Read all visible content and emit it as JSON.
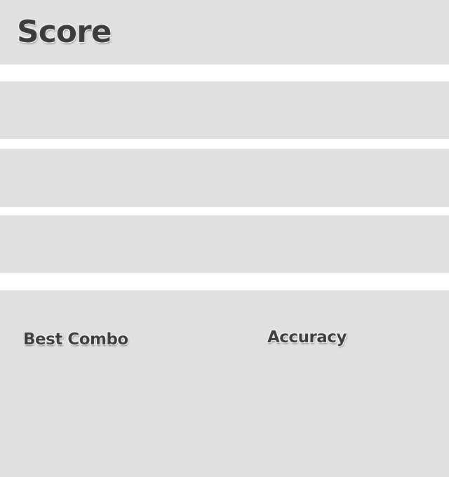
{
  "header": {
    "title": "Score"
  },
  "stats": {
    "best_combo_label": "Best Combo",
    "accuracy_label": "Accuracy"
  },
  "colors": {
    "panel": "#e0e0e0",
    "text": "#3c3c3c",
    "background": "#ffffff"
  }
}
